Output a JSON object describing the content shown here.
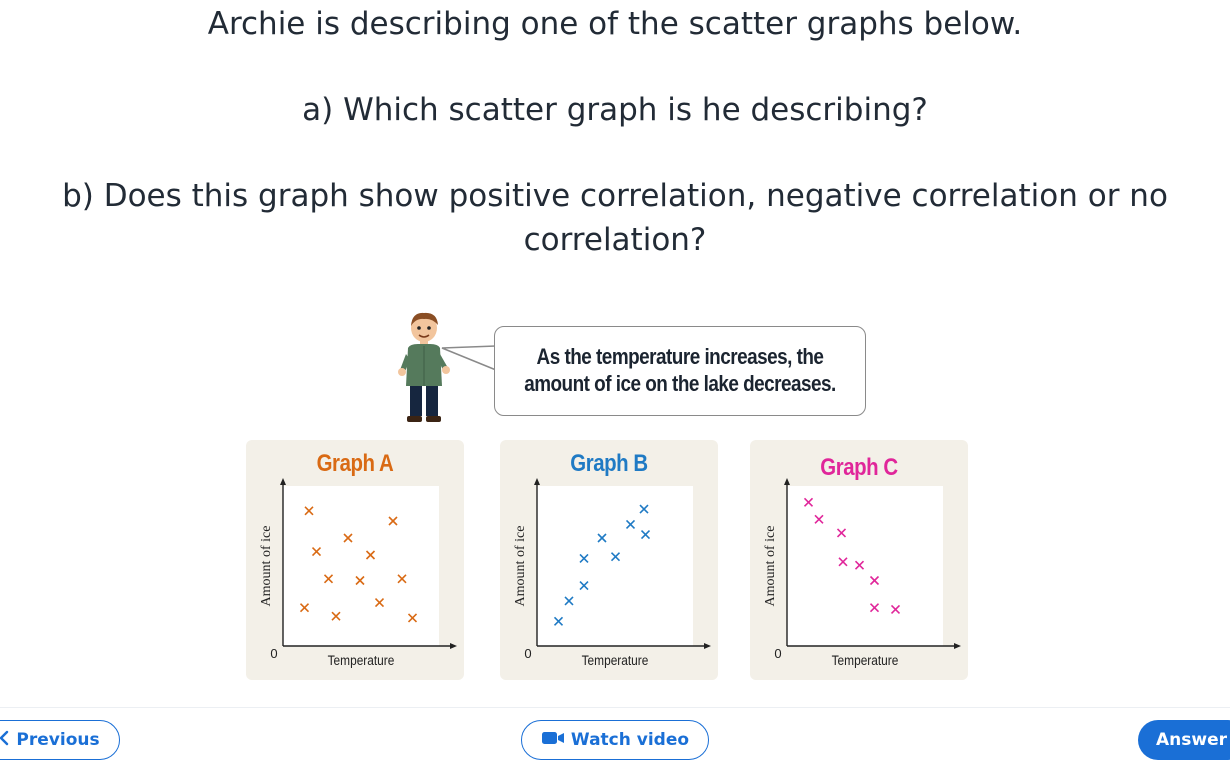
{
  "question": {
    "line1": "Archie is describing one of the scatter graphs below.",
    "line2": "a) Which scatter graph is he describing?",
    "line3": "b) Does this graph show positive correlation, negative correlation or no correlation?"
  },
  "speech": {
    "line1": "As the temperature increases, the",
    "line2": "amount of ice on the lake decreases."
  },
  "graphs": [
    {
      "title": "Graph A",
      "color": "#d96a14",
      "xlabel": "Temperature",
      "ylabel": "Amount of ice",
      "origin": "0"
    },
    {
      "title": "Graph B",
      "color": "#1f7ac4",
      "xlabel": "Temperature",
      "ylabel": "Amount of ice",
      "origin": "0"
    },
    {
      "title": "Graph C",
      "color": "#e0269a",
      "xlabel": "Temperature",
      "ylabel": "Amount of ice",
      "origin": "0"
    }
  ],
  "chart_data": [
    {
      "type": "scatter",
      "title": "Graph A",
      "xlabel": "Temperature",
      "ylabel": "Amount of ice",
      "xlim": [
        0,
        10
      ],
      "ylim": [
        0,
        10
      ],
      "points": [
        [
          1.2,
          7.6
        ],
        [
          1.7,
          5.2
        ],
        [
          2.5,
          3.6
        ],
        [
          3.8,
          6.0
        ],
        [
          4.6,
          3.5
        ],
        [
          5.3,
          5.0
        ],
        [
          3.0,
          1.4
        ],
        [
          0.9,
          1.9
        ],
        [
          5.9,
          2.2
        ],
        [
          6.8,
          7.0
        ],
        [
          7.4,
          3.6
        ],
        [
          8.1,
          1.3
        ]
      ]
    },
    {
      "type": "scatter",
      "title": "Graph B",
      "xlabel": "Temperature",
      "ylabel": "Amount of ice",
      "xlim": [
        0,
        10
      ],
      "ylim": [
        0,
        10
      ],
      "points": [
        [
          0.9,
          1.1
        ],
        [
          1.6,
          2.3
        ],
        [
          2.6,
          3.2
        ],
        [
          3.8,
          6.0
        ],
        [
          2.6,
          4.8
        ],
        [
          5.7,
          6.8
        ],
        [
          4.7,
          4.9
        ],
        [
          6.6,
          7.7
        ],
        [
          6.7,
          6.2
        ]
      ]
    },
    {
      "type": "scatter",
      "title": "Graph C",
      "xlabel": "Temperature",
      "ylabel": "Amount of ice",
      "xlim": [
        0,
        10
      ],
      "ylim": [
        0,
        10
      ],
      "points": [
        [
          0.9,
          8.1
        ],
        [
          1.6,
          7.1
        ],
        [
          3.1,
          6.3
        ],
        [
          3.2,
          4.6
        ],
        [
          4.3,
          4.4
        ],
        [
          5.3,
          3.5
        ],
        [
          5.3,
          1.9
        ],
        [
          6.7,
          1.8
        ]
      ]
    }
  ],
  "buttons": {
    "previous": "Previous",
    "watch_video": "Watch video",
    "answer": "Answer"
  }
}
